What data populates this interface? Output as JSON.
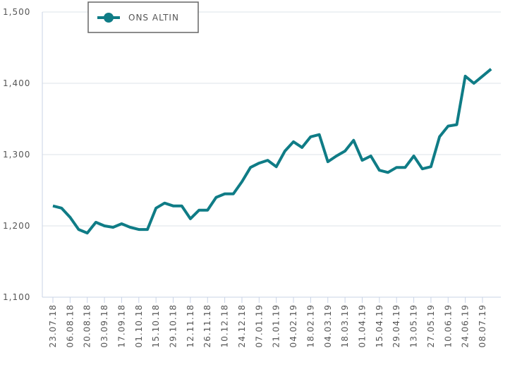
{
  "chart_data": {
    "type": "line",
    "categories": [
      "23.07.18",
      null,
      "06.08.18",
      null,
      "20.08.18",
      null,
      "03.09.18",
      null,
      "17.09.18",
      null,
      "01.10.18",
      null,
      "15.10.18",
      null,
      "29.10.18",
      null,
      "12.11.18",
      null,
      "26.11.18",
      null,
      "10.12.18",
      null,
      "24.12.18",
      null,
      "07.01.19",
      null,
      "21.01.19",
      null,
      "04.02.19",
      null,
      "18.02.19",
      null,
      "04.03.19",
      null,
      "18.03.19",
      null,
      "01.04.19",
      null,
      "15.04.19",
      null,
      "29.04.19",
      null,
      "13.05.19",
      null,
      "27.05.19",
      null,
      "10.06.19",
      null,
      "24.06.19",
      null,
      "08.07.19",
      null
    ],
    "series": [
      {
        "name": "ONS ALTIN",
        "color": "#0f7c86",
        "values": [
          1228,
          1225,
          1212,
          1195,
          1190,
          1205,
          1200,
          1198,
          1203,
          1198,
          1195,
          1195,
          1225,
          1232,
          1228,
          1228,
          1210,
          1222,
          1222,
          1240,
          1245,
          1245,
          1262,
          1282,
          1288,
          1292,
          1283,
          1305,
          1318,
          1310,
          1325,
          1328,
          1290,
          1298,
          1305,
          1320,
          1292,
          1298,
          1278,
          1275,
          1282,
          1282,
          1298,
          1280,
          1283,
          1325,
          1340,
          1342,
          1410,
          1400,
          1410,
          1420
        ]
      }
    ],
    "ylim": [
      1100,
      1500
    ],
    "yticks": [
      {
        "value": 1100,
        "label": "1,100"
      },
      {
        "value": 1200,
        "label": "1,200"
      },
      {
        "value": 1300,
        "label": "1,300"
      },
      {
        "value": 1400,
        "label": "1,400"
      },
      {
        "value": 1500,
        "label": "1,500"
      }
    ],
    "grid": true,
    "legend": "top-left"
  }
}
